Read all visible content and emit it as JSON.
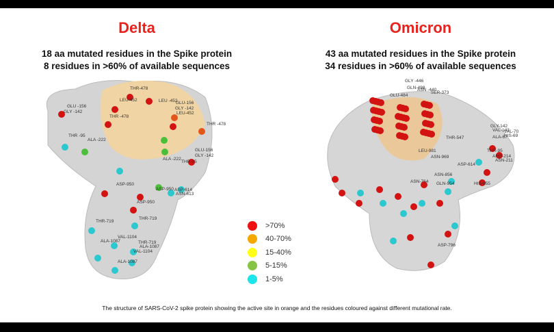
{
  "delta": {
    "title": "Delta",
    "line1": "18 aa mutated residues in the Spike protein",
    "line2": "8 residues in >60% of available sequences",
    "labels": [
      "THR-478",
      "LEU-452",
      "LEU -452",
      "GLU -156",
      "GLY -142",
      "THR -478",
      "GLU-156",
      "GLY -142",
      "LEU-452",
      "THR -95",
      "ALA -222",
      "THR -478",
      "GLU-156",
      "GLY -142",
      "ALA -222",
      "THR-95",
      "ASP-950",
      "ASP-950",
      "ASP-614",
      "ASN-613",
      "ASP-950",
      "THR-719",
      "THR-719",
      "VAL-1104",
      "ALA-1087",
      "THR-719",
      "ALA-1087",
      "VAL-1104",
      "ALA-1087"
    ]
  },
  "omicron": {
    "title": "Omicron",
    "line1": "43 aa mutated residues in the Spike protein",
    "line2": "34 residues in >60% of available sequences",
    "labels": [
      "GLY -446",
      "GLN-498",
      "ASN -440",
      "GLU-484",
      "SER-373",
      "THR-547",
      "GLY-142",
      "VAL-143",
      "ALA-67",
      "VAL-70",
      "HIS-69",
      "THR-95",
      "ARG-214",
      "ASN-211",
      "LEU-981",
      "ASN-969",
      "ASP-614",
      "ASN-856",
      "ASN-764",
      "GLN-954",
      "HIS-655",
      "ASP-796"
    ]
  },
  "legend": [
    {
      "label": ">70%",
      "color": "#ee1111"
    },
    {
      "label": "40-70%",
      "color": "#f5a800"
    },
    {
      "label": "15-40%",
      "color": "#ffff1a"
    },
    {
      "label": "5-15%",
      "color": "#86c544"
    },
    {
      "label": "1-5%",
      "color": "#1ce6ec"
    }
  ],
  "caption": "The structure of SARS-CoV-2 spike protein showing the active site in orange and the residues coloured against different mutational rate."
}
